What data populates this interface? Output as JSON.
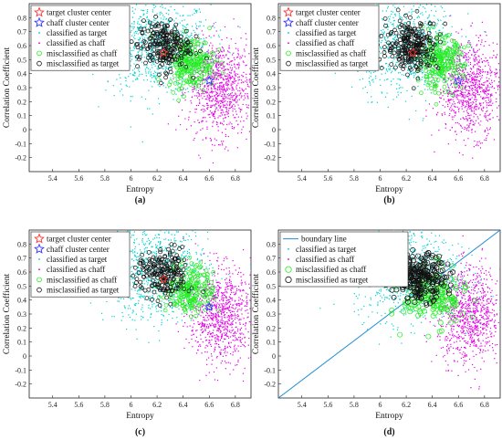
{
  "chart_data": [
    {
      "type": "scatter",
      "caption": "(a)",
      "xlabel": "Entropy",
      "ylabel": "Correlation Coefficient",
      "xlim": [
        5.22,
        6.92
      ],
      "ylim": [
        -0.3,
        0.9
      ],
      "xticks": [
        "5.4",
        "5.6",
        "5.8",
        "6",
        "6.2",
        "6.4",
        "6.6",
        "6.8"
      ],
      "yticks": [
        "-0.2",
        "-0.1",
        "0",
        "0.1",
        "0.2",
        "0.3",
        "0.4",
        "0.5",
        "0.6",
        "0.7",
        "0.8"
      ],
      "legend_position": "top-left",
      "series": [
        {
          "name": "target cluster center",
          "marker": "star",
          "color": "#ff3333",
          "points": [
            [
              6.25,
              0.55
            ]
          ]
        },
        {
          "name": "chaff cluster center",
          "marker": "star",
          "color": "#3333ff",
          "points": [
            [
              6.6,
              0.35
            ]
          ]
        },
        {
          "name": "classified as target",
          "marker": "dot",
          "color": "#00d2d2",
          "center": [
            6.2,
            0.6
          ],
          "spread": [
            0.2,
            0.17
          ],
          "count": 900
        },
        {
          "name": "classified as chaff",
          "marker": "dot",
          "color": "#e600e6",
          "center": [
            6.68,
            0.3
          ],
          "spread": [
            0.12,
            0.17
          ],
          "count": 900
        },
        {
          "name": "misclassified as chaff",
          "marker": "small-circle",
          "color": "#22ee22",
          "center": [
            6.46,
            0.48
          ],
          "spread": [
            0.09,
            0.09
          ],
          "count": 220
        },
        {
          "name": "misclassified as target",
          "marker": "small-circle",
          "color": "#111111",
          "center": [
            6.25,
            0.6
          ],
          "spread": [
            0.1,
            0.09
          ],
          "count": 220
        }
      ]
    },
    {
      "type": "scatter",
      "caption": "(b)",
      "xlabel": "Entropy",
      "ylabel": "Correlation Coefficient",
      "xlim": [
        5.22,
        6.92
      ],
      "ylim": [
        -0.3,
        0.9
      ],
      "xticks": [
        "5.4",
        "5.6",
        "5.8",
        "6",
        "6.2",
        "6.4",
        "6.6",
        "6.8"
      ],
      "yticks": [
        "-0.2",
        "-0.1",
        "0",
        "0.1",
        "0.2",
        "0.3",
        "0.4",
        "0.5",
        "0.6",
        "0.7",
        "0.8"
      ],
      "legend_position": "top-left",
      "series": [
        {
          "name": "target cluster center",
          "marker": "star",
          "color": "#ff3333",
          "points": [
            [
              6.25,
              0.55
            ]
          ]
        },
        {
          "name": "chaff cluster center",
          "marker": "star",
          "color": "#3333ff",
          "points": [
            [
              6.6,
              0.35
            ]
          ]
        },
        {
          "name": "classified as target",
          "marker": "dot",
          "color": "#00d2d2",
          "center": [
            6.2,
            0.6
          ],
          "spread": [
            0.2,
            0.17
          ],
          "count": 900
        },
        {
          "name": "classified as chaff",
          "marker": "dot",
          "color": "#e600e6",
          "center": [
            6.68,
            0.3
          ],
          "spread": [
            0.12,
            0.17
          ],
          "count": 900
        },
        {
          "name": "misclassified as chaff",
          "marker": "small-circle",
          "color": "#22ee22",
          "center": [
            6.46,
            0.48
          ],
          "spread": [
            0.09,
            0.09
          ],
          "count": 220
        },
        {
          "name": "misclassified as target",
          "marker": "small-circle",
          "color": "#111111",
          "center": [
            6.25,
            0.6
          ],
          "spread": [
            0.1,
            0.09
          ],
          "count": 260
        }
      ]
    },
    {
      "type": "scatter",
      "caption": "(c)",
      "xlabel": "Entropy",
      "ylabel": "Correlation Coefficient",
      "xlim": [
        5.22,
        6.92
      ],
      "ylim": [
        -0.3,
        0.9
      ],
      "xticks": [
        "5.4",
        "5.6",
        "5.8",
        "6",
        "6.2",
        "6.4",
        "6.6",
        "6.8"
      ],
      "yticks": [
        "-0.2",
        "-0.1",
        "0",
        "0.1",
        "0.2",
        "0.3",
        "0.4",
        "0.5",
        "0.6",
        "0.7",
        "0.8"
      ],
      "legend_position": "top-left",
      "series": [
        {
          "name": "target cluster center",
          "marker": "star",
          "color": "#ff3333",
          "points": [
            [
              6.25,
              0.55
            ]
          ]
        },
        {
          "name": "chaff cluster center",
          "marker": "star",
          "color": "#3333ff",
          "points": [
            [
              6.6,
              0.35
            ]
          ]
        },
        {
          "name": "classified as target",
          "marker": "dot",
          "color": "#00d2d2",
          "center": [
            6.2,
            0.6
          ],
          "spread": [
            0.2,
            0.17
          ],
          "count": 900
        },
        {
          "name": "classified as chaff",
          "marker": "dot",
          "color": "#e600e6",
          "center": [
            6.68,
            0.3
          ],
          "spread": [
            0.12,
            0.17
          ],
          "count": 900
        },
        {
          "name": "misclassified as chaff",
          "marker": "small-circle",
          "color": "#22ee22",
          "center": [
            6.46,
            0.48
          ],
          "spread": [
            0.09,
            0.09
          ],
          "count": 200
        },
        {
          "name": "misclassified as target",
          "marker": "small-circle",
          "color": "#111111",
          "center": [
            6.25,
            0.58
          ],
          "spread": [
            0.1,
            0.09
          ],
          "count": 200
        }
      ]
    },
    {
      "type": "scatter",
      "caption": "(d)",
      "xlabel": "Entropy",
      "ylabel": "Correlation Coefficient",
      "xlim": [
        5.22,
        6.92
      ],
      "ylim": [
        -0.3,
        0.9
      ],
      "xticks": [
        "5.4",
        "5.6",
        "5.8",
        "6",
        "6.2",
        "6.4",
        "6.6",
        "6.8"
      ],
      "yticks": [
        "-0.2",
        "-0.1",
        "0",
        "0.1",
        "0.2",
        "0.3",
        "0.4",
        "0.5",
        "0.6",
        "0.7",
        "0.8"
      ],
      "legend_position": "top-left",
      "boundary_line": {
        "name": "boundary line",
        "color": "#1f8fd6",
        "from": [
          5.22,
          -0.3
        ],
        "to": [
          6.92,
          0.9
        ]
      },
      "series": [
        {
          "name": "classified as target",
          "marker": "dot",
          "color": "#00d2d2",
          "center": [
            6.2,
            0.6
          ],
          "spread": [
            0.2,
            0.17
          ],
          "count": 900
        },
        {
          "name": "classified as chaff",
          "marker": "dot",
          "color": "#e600e6",
          "center": [
            6.68,
            0.3
          ],
          "spread": [
            0.12,
            0.17
          ],
          "count": 900
        },
        {
          "name": "misclassified as chaff",
          "marker": "circle",
          "color": "#22ee22",
          "center": [
            6.42,
            0.42
          ],
          "spread": [
            0.12,
            0.1
          ],
          "count": 160
        },
        {
          "name": "misclassified as target",
          "marker": "circle",
          "color": "#111111",
          "center": [
            6.3,
            0.56
          ],
          "spread": [
            0.1,
            0.08
          ],
          "count": 260
        }
      ]
    }
  ]
}
